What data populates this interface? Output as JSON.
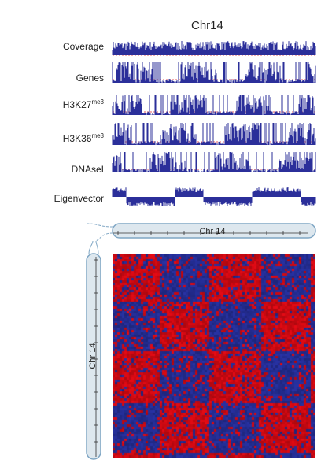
{
  "figure": {
    "title": "Chr14",
    "chromosome_label": "Chr 14"
  },
  "tracks": [
    {
      "name": "Coverage",
      "sup": ""
    },
    {
      "name": "Genes",
      "sup": ""
    },
    {
      "name": "H3K27",
      "sup": "me3"
    },
    {
      "name": "H3K36",
      "sup": "me3"
    },
    {
      "name": "DNAseI",
      "sup": ""
    },
    {
      "name": "Eigenvector",
      "sup": ""
    }
  ],
  "colors": {
    "signal": "#2b2f9a",
    "baseline": "#e0242a",
    "heat_high": "#e00000",
    "heat_low": "#1c2a9c",
    "ideogram_fill": "#dde7ee",
    "ideogram_stroke": "#7fa6c4"
  }
}
